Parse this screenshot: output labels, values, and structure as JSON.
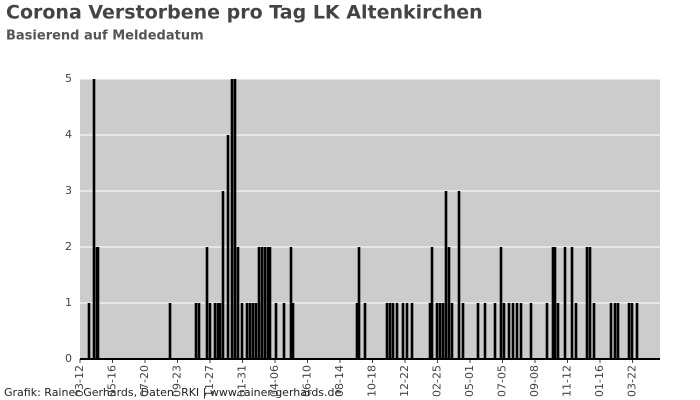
{
  "chart_data": {
    "type": "bar",
    "title": "Corona Verstorbene pro Tag LK Altenkirchen",
    "subtitle": "Basierend auf Meldedatum",
    "footer": "Grafik: Rainer Gerhards, Daten: RKI | www.rainer-gerhards.de",
    "x": [
      18,
      28,
      34,
      36,
      180,
      232,
      238,
      254,
      260,
      270,
      276,
      280,
      286,
      296,
      304,
      310,
      316,
      324,
      334,
      340,
      346,
      352,
      358,
      364,
      370,
      376,
      380,
      392,
      408,
      422,
      426,
      554,
      558,
      570,
      614,
      620,
      626,
      634,
      646,
      654,
      664,
      700,
      704,
      714,
      720,
      726,
      732,
      738,
      744,
      758,
      766,
      796,
      810,
      830,
      842,
      848,
      858,
      866,
      874,
      882,
      902,
      934,
      946,
      950,
      956,
      970,
      984,
      992,
      1014,
      1020,
      1028,
      1062,
      1070,
      1076,
      1098,
      1104,
      1114
    ],
    "values": [
      1,
      5,
      2,
      2,
      1,
      1,
      1,
      2,
      1,
      1,
      1,
      1,
      3,
      4,
      5,
      5,
      2,
      1,
      1,
      1,
      1,
      1,
      2,
      2,
      2,
      2,
      2,
      1,
      1,
      2,
      1,
      1,
      2,
      1,
      1,
      1,
      1,
      1,
      1,
      1,
      1,
      1,
      2,
      1,
      1,
      1,
      3,
      2,
      1,
      3,
      1,
      1,
      1,
      1,
      2,
      1,
      1,
      1,
      1,
      1,
      1,
      1,
      2,
      2,
      1,
      2,
      2,
      1,
      2,
      2,
      1,
      1,
      1,
      1,
      1,
      1,
      1
    ],
    "color": "#000000",
    "background": "#cccccc",
    "xlim": [
      0,
      1160
    ],
    "xticks": [
      {
        "value": 0,
        "label": "03-12"
      },
      {
        "value": 65,
        "label": "05-16"
      },
      {
        "value": 130,
        "label": "07-20"
      },
      {
        "value": 195,
        "label": "09-23"
      },
      {
        "value": 260,
        "label": "11-27"
      },
      {
        "value": 325,
        "label": "01-31"
      },
      {
        "value": 390,
        "label": "04-06"
      },
      {
        "value": 455,
        "label": "06-10"
      },
      {
        "value": 520,
        "label": "08-14"
      },
      {
        "value": 585,
        "label": "10-18"
      },
      {
        "value": 650,
        "label": "12-22"
      },
      {
        "value": 715,
        "label": "02-25"
      },
      {
        "value": 780,
        "label": "05-01"
      },
      {
        "value": 845,
        "label": "07-05"
      },
      {
        "value": 910,
        "label": "09-08"
      },
      {
        "value": 975,
        "label": "11-12"
      },
      {
        "value": 1040,
        "label": "01-16"
      },
      {
        "value": 1105,
        "label": "03-22"
      }
    ],
    "ylim": [
      0,
      5
    ],
    "yticks": [
      0,
      1,
      2,
      3,
      4,
      5
    ],
    "grid": true
  }
}
